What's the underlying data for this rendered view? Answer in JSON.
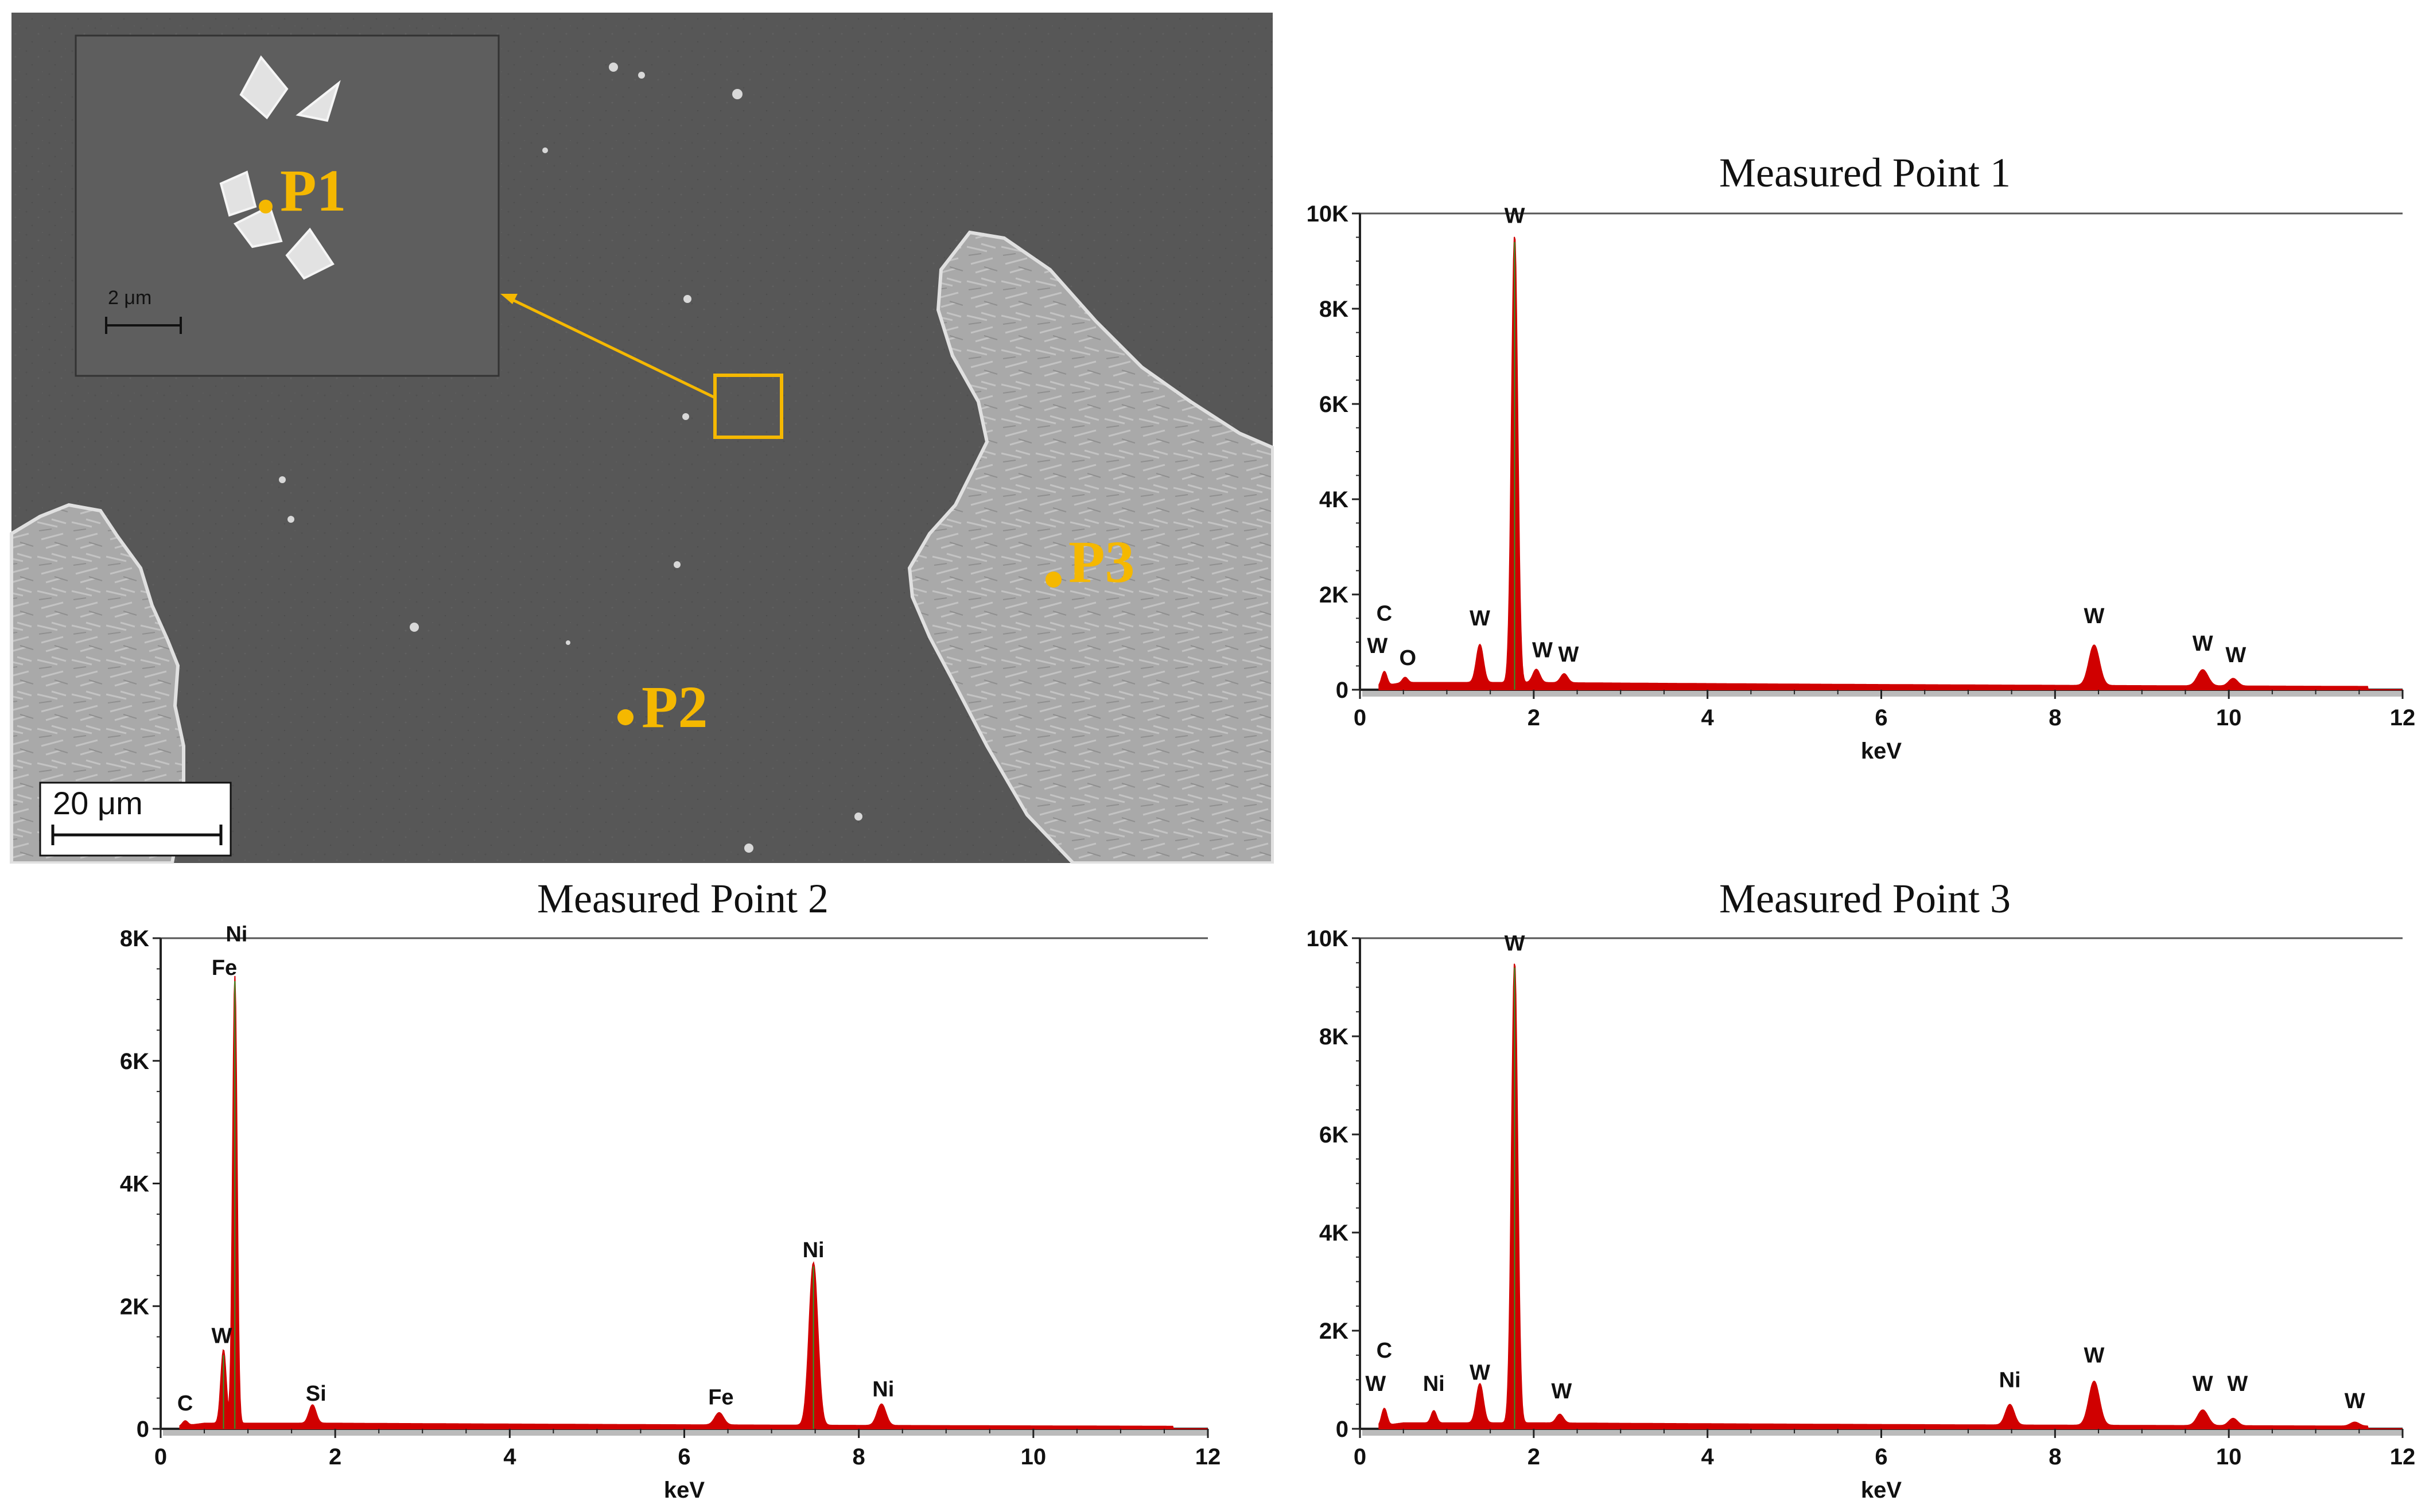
{
  "sem_image": {
    "scale_bar_label": "20 μm",
    "inset_scale_bar_label": "2 μm",
    "points": [
      {
        "label": "P1"
      },
      {
        "label": "P2"
      },
      {
        "label": "P3"
      }
    ],
    "marker_color": "#f5b800"
  },
  "chart_data": [
    {
      "type": "line",
      "title": "Measured Point 1",
      "xlabel": "keV",
      "ylabel": "",
      "xlim": [
        0,
        12
      ],
      "ylim": [
        0,
        10000
      ],
      "x_ticks": [
        0,
        2,
        4,
        6,
        8,
        10,
        12
      ],
      "y_ticks": [
        "0",
        "2K",
        "4K",
        "6K",
        "8K",
        "10K"
      ],
      "y_tick_values": [
        0,
        2000,
        4000,
        6000,
        8000,
        10000
      ],
      "background_counts": 150,
      "fill_color": "#d00000",
      "peaks": [
        {
          "keV": 0.28,
          "counts": 300,
          "width": 0.03
        },
        {
          "keV": 0.52,
          "counts": 110,
          "width": 0.03
        },
        {
          "keV": 1.38,
          "counts": 800,
          "width": 0.04
        },
        {
          "keV": 1.78,
          "counts": 9400,
          "width": 0.035
        },
        {
          "keV": 2.03,
          "counts": 280,
          "width": 0.04
        },
        {
          "keV": 2.35,
          "counts": 190,
          "width": 0.04
        },
        {
          "keV": 8.45,
          "counts": 850,
          "width": 0.06
        },
        {
          "keV": 9.7,
          "counts": 340,
          "width": 0.06
        },
        {
          "keV": 10.05,
          "counts": 160,
          "width": 0.05
        }
      ],
      "annotations": [
        {
          "label": "C",
          "keV": 0.28,
          "counts": 1450
        },
        {
          "label": "W",
          "keV": 0.2,
          "counts": 770
        },
        {
          "label": "O",
          "keV": 0.55,
          "counts": 520
        },
        {
          "label": "W",
          "keV": 1.38,
          "counts": 1350
        },
        {
          "label": "W",
          "keV": 1.78,
          "counts": 9800
        },
        {
          "label": "W",
          "keV": 2.1,
          "counts": 680
        },
        {
          "label": "W",
          "keV": 2.4,
          "counts": 590
        },
        {
          "label": "W",
          "keV": 8.45,
          "counts": 1400
        },
        {
          "label": "W",
          "keV": 9.7,
          "counts": 820
        },
        {
          "label": "W",
          "keV": 10.08,
          "counts": 580
        }
      ]
    },
    {
      "type": "line",
      "title": "Measured Point 2",
      "xlabel": "keV",
      "ylabel": "",
      "xlim": [
        0,
        12
      ],
      "ylim": [
        0,
        8000
      ],
      "x_ticks": [
        0,
        2,
        4,
        6,
        8,
        10,
        12
      ],
      "y_ticks": [
        "0",
        "2K",
        "4K",
        "6K",
        "8K"
      ],
      "y_tick_values": [
        0,
        2000,
        4000,
        6000,
        8000
      ],
      "background_counts": 90,
      "fill_color": "#d00000",
      "peaks": [
        {
          "keV": 0.28,
          "counts": 80,
          "width": 0.03
        },
        {
          "keV": 0.72,
          "counts": 1200,
          "width": 0.03
        },
        {
          "keV": 0.85,
          "counts": 7300,
          "width": 0.025
        },
        {
          "keV": 1.74,
          "counts": 300,
          "width": 0.04
        },
        {
          "keV": 6.4,
          "counts": 200,
          "width": 0.05
        },
        {
          "keV": 7.48,
          "counts": 2650,
          "width": 0.05
        },
        {
          "keV": 8.26,
          "counts": 350,
          "width": 0.05
        }
      ],
      "annotations": [
        {
          "label": "C",
          "keV": 0.28,
          "counts": 300
        },
        {
          "label": "W",
          "keV": 0.7,
          "counts": 1400
        },
        {
          "label": "Fe",
          "keV": 0.73,
          "counts": 7400
        },
        {
          "label": "Ni",
          "keV": 0.87,
          "counts": 7950
        },
        {
          "label": "Si",
          "keV": 1.78,
          "counts": 460
        },
        {
          "label": "Fe",
          "keV": 6.42,
          "counts": 400
        },
        {
          "label": "Ni",
          "keV": 7.48,
          "counts": 2800
        },
        {
          "label": "Ni",
          "keV": 8.28,
          "counts": 530
        }
      ]
    },
    {
      "type": "line",
      "title": "Measured Point 3",
      "xlabel": "keV",
      "ylabel": "",
      "xlim": [
        0,
        12
      ],
      "ylim": [
        0,
        10000
      ],
      "x_ticks": [
        0,
        2,
        4,
        6,
        8,
        10,
        12
      ],
      "y_ticks": [
        "0",
        "2K",
        "4K",
        "6K",
        "8K",
        "10K"
      ],
      "y_tick_values": [
        0,
        2000,
        4000,
        6000,
        8000,
        10000
      ],
      "background_counts": 120,
      "fill_color": "#d00000",
      "peaks": [
        {
          "keV": 0.28,
          "counts": 350,
          "width": 0.03
        },
        {
          "keV": 0.85,
          "counts": 250,
          "width": 0.03
        },
        {
          "keV": 1.38,
          "counts": 800,
          "width": 0.04
        },
        {
          "keV": 1.78,
          "counts": 9400,
          "width": 0.035
        },
        {
          "keV": 2.3,
          "counts": 180,
          "width": 0.04
        },
        {
          "keV": 7.48,
          "counts": 420,
          "width": 0.05
        },
        {
          "keV": 8.45,
          "counts": 900,
          "width": 0.06
        },
        {
          "keV": 9.7,
          "counts": 320,
          "width": 0.06
        },
        {
          "keV": 10.05,
          "counts": 150,
          "width": 0.05
        },
        {
          "keV": 11.45,
          "counts": 80,
          "width": 0.05
        }
      ],
      "annotations": [
        {
          "label": "C",
          "keV": 0.28,
          "counts": 1450
        },
        {
          "label": "W",
          "keV": 0.18,
          "counts": 770
        },
        {
          "label": "Ni",
          "keV": 0.85,
          "counts": 770
        },
        {
          "label": "W",
          "keV": 1.38,
          "counts": 1000
        },
        {
          "label": "W",
          "keV": 1.78,
          "counts": 9750
        },
        {
          "label": "W",
          "keV": 2.32,
          "counts": 620
        },
        {
          "label": "Ni",
          "keV": 7.48,
          "counts": 850
        },
        {
          "label": "W",
          "keV": 8.45,
          "counts": 1350
        },
        {
          "label": "W",
          "keV": 9.7,
          "counts": 770
        },
        {
          "label": "W",
          "keV": 10.1,
          "counts": 770
        },
        {
          "label": "W",
          "keV": 11.45,
          "counts": 420
        }
      ]
    }
  ]
}
